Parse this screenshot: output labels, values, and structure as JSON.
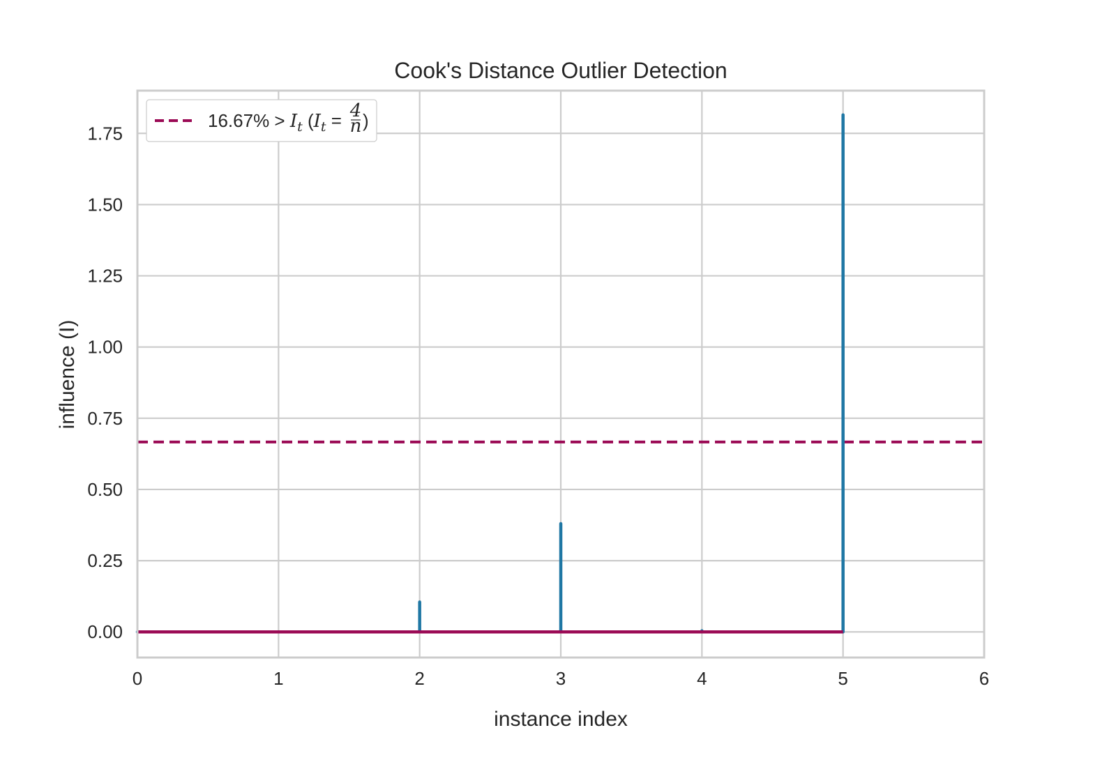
{
  "chart_data": {
    "type": "stem",
    "title": "Cook's Distance Outlier Detection",
    "xlabel": "instance index",
    "ylabel": "influence (I)",
    "xlim": [
      0,
      6
    ],
    "ylim": [
      -0.09,
      1.9
    ],
    "x_ticks": [
      "0",
      "1",
      "2",
      "3",
      "4",
      "5",
      "6"
    ],
    "y_ticks": [
      "0.00",
      "0.25",
      "0.50",
      "0.75",
      "1.00",
      "1.25",
      "1.50",
      "1.75"
    ],
    "x": [
      0,
      1,
      2,
      3,
      4,
      5
    ],
    "values": [
      0.0,
      0.0,
      0.105,
      0.38,
      0.004,
      1.815
    ],
    "threshold": 0.6667,
    "threshold_legend": {
      "prefix": "16.67% > ",
      "sym": "I",
      "sub": "t",
      "eq": " = ",
      "num": "4",
      "den": "n"
    },
    "grid": true,
    "legend_position": "upper-left",
    "colors": {
      "stem": "#1f77a4",
      "baseline": "#9b0a55",
      "threshold": "#9b0a55",
      "grid": "#cccccc",
      "frame": "#cccccc"
    }
  }
}
